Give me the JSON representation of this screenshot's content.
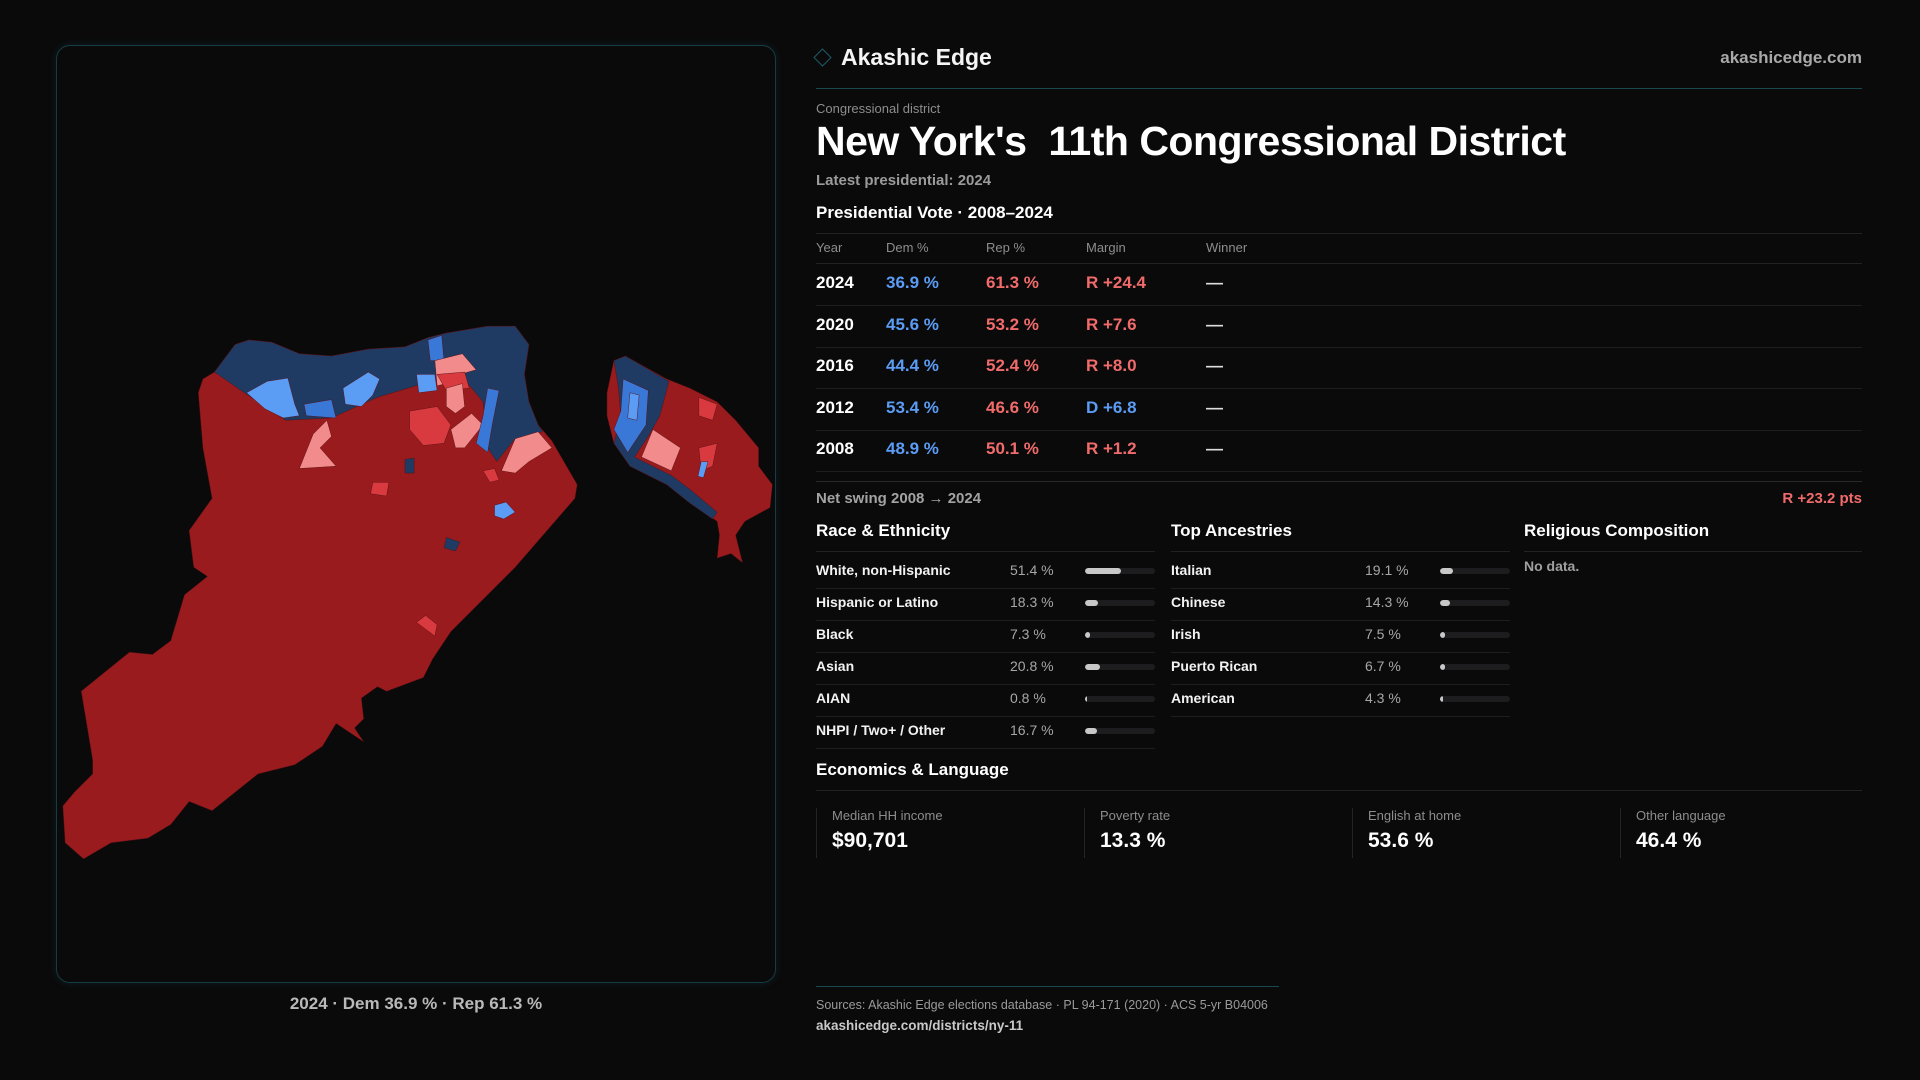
{
  "brand": {
    "name": "Akashic Edge",
    "site": "akashicedge.com"
  },
  "map": {
    "caption": "2024 · Dem 36.9 % · Rep 61.3 %",
    "colors": {
      "rep_strong": "#991b1e",
      "rep_mid": "#d93a3f",
      "rep_light": "#f28b8b",
      "dem_strong": "#1f3a63",
      "dem_mid": "#3a78d8",
      "dem_light": "#5b9cf5"
    }
  },
  "header": {
    "kicker": "Congressional district",
    "title": "New York's  11th Congressional District",
    "latest": "Latest presidential: 2024"
  },
  "vote": {
    "heading": "Presidential Vote · 2008–2024",
    "columns": [
      "Year",
      "Dem %",
      "Rep %",
      "Margin",
      "Winner"
    ],
    "rows": [
      {
        "year": "2024",
        "dem": "36.9 %",
        "rep": "61.3 %",
        "margin": "R +24.4",
        "party": "R",
        "winner": "—"
      },
      {
        "year": "2020",
        "dem": "45.6 %",
        "rep": "53.2 %",
        "margin": "R +7.6",
        "party": "R",
        "winner": "—"
      },
      {
        "year": "2016",
        "dem": "44.4 %",
        "rep": "52.4 %",
        "margin": "R +8.0",
        "party": "R",
        "winner": "—"
      },
      {
        "year": "2012",
        "dem": "53.4 %",
        "rep": "46.6 %",
        "margin": "D +6.8",
        "party": "D",
        "winner": "—"
      },
      {
        "year": "2008",
        "dem": "48.9 %",
        "rep": "50.1 %",
        "margin": "R +1.2",
        "party": "R",
        "winner": "—"
      }
    ],
    "swing_label": "Net swing 2008 → 2024",
    "swing_value": "R +23.2 pts"
  },
  "race": {
    "heading": "Race & Ethnicity",
    "items": [
      {
        "label": "White, non-Hispanic",
        "value": "51.4 %",
        "pct": 51.4
      },
      {
        "label": "Hispanic or Latino",
        "value": "18.3 %",
        "pct": 18.3
      },
      {
        "label": "Black",
        "value": "7.3 %",
        "pct": 7.3
      },
      {
        "label": "Asian",
        "value": "20.8 %",
        "pct": 20.8
      },
      {
        "label": "AIAN",
        "value": "0.8 %",
        "pct": 0.8
      },
      {
        "label": "NHPI / Two+ / Other",
        "value": "16.7 %",
        "pct": 16.7
      }
    ]
  },
  "ancestry": {
    "heading": "Top Ancestries",
    "items": [
      {
        "label": "Italian",
        "value": "19.1 %",
        "pct": 19.1
      },
      {
        "label": "Chinese",
        "value": "14.3 %",
        "pct": 14.3
      },
      {
        "label": "Irish",
        "value": "7.5 %",
        "pct": 7.5
      },
      {
        "label": "Puerto Rican",
        "value": "6.7 %",
        "pct": 6.7
      },
      {
        "label": "American",
        "value": "4.3 %",
        "pct": 4.3
      }
    ]
  },
  "religion": {
    "heading": "Religious Composition",
    "empty": "No data."
  },
  "econ": {
    "heading": "Economics & Language",
    "cards": [
      {
        "label": "Median HH income",
        "value": "$90,701"
      },
      {
        "label": "Poverty rate",
        "value": "13.3 %"
      },
      {
        "label": "English at home",
        "value": "53.6 %"
      },
      {
        "label": "Other language",
        "value": "46.4 %"
      }
    ]
  },
  "footer": {
    "sources": "Sources: Akashic Edge elections database · PL 94-171 (2020) · ACS 5-yr B04006",
    "url": "akashicedge.com/districts/ny-11"
  }
}
